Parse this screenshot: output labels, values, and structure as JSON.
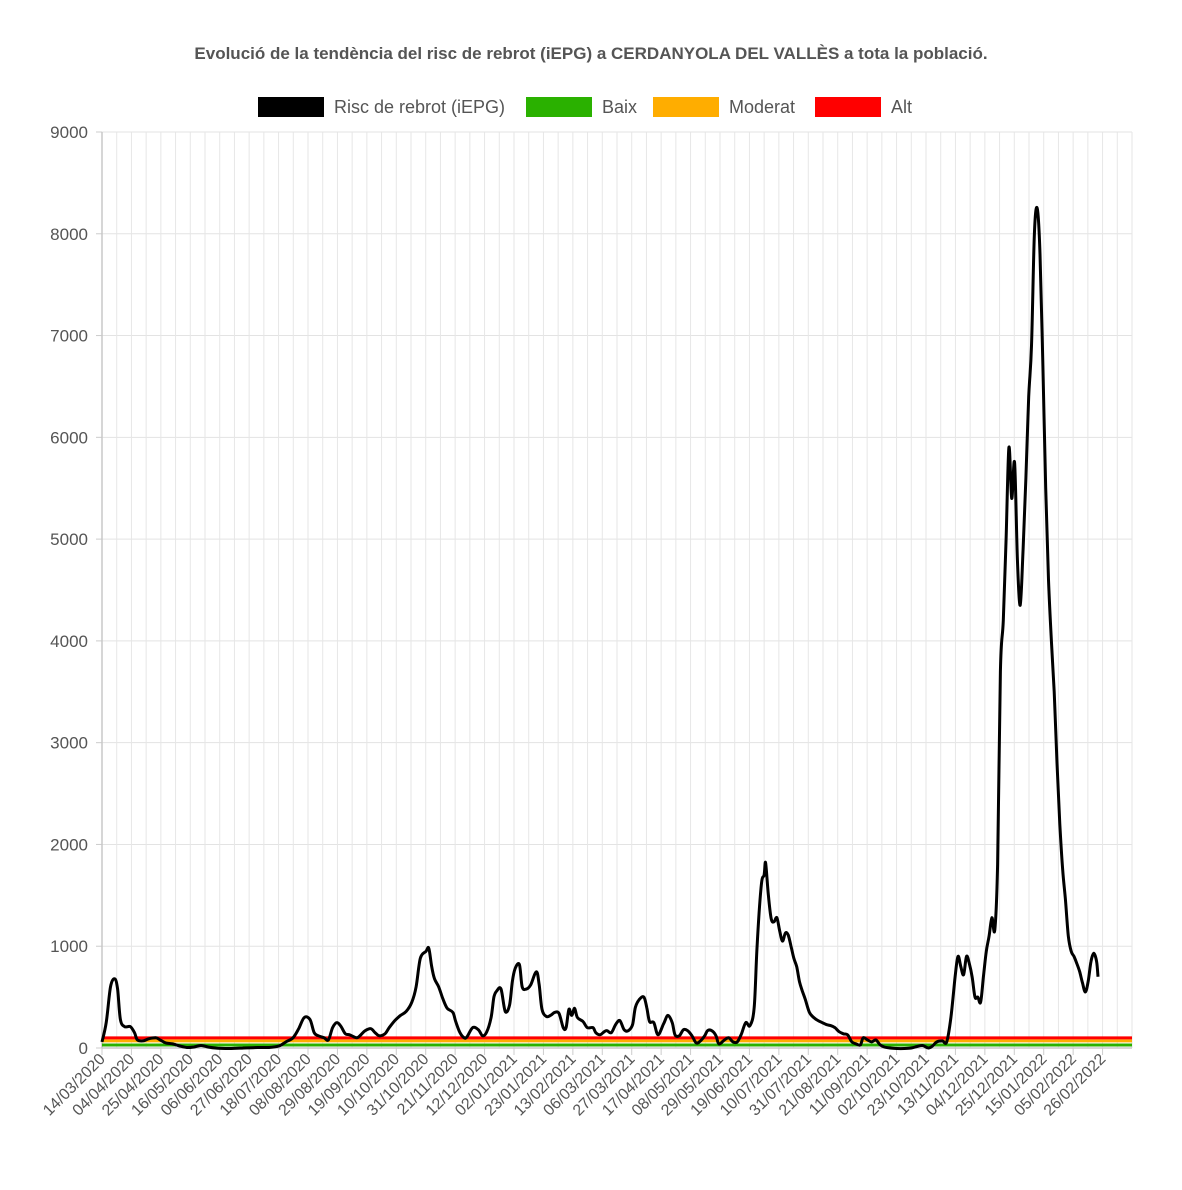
{
  "chart_data": {
    "type": "line",
    "title": "Evolució de la tendència del risc de rebrot (iEPG) a CERDANYOLA DEL VALLÈS a tota la població.",
    "legend_position": "top-center",
    "grid": true,
    "ylim": [
      0,
      9000
    ],
    "y_ticks": [
      "0",
      "1000",
      "2000",
      "3000",
      "4000",
      "5000",
      "6000",
      "7000",
      "8000",
      "9000"
    ],
    "x_tick_labels": [
      "14/03/2020",
      "04/04/2020",
      "25/04/2020",
      "16/05/2020",
      "06/06/2020",
      "27/06/2020",
      "18/07/2020",
      "08/08/2020",
      "29/08/2020",
      "19/09/2020",
      "10/10/2020",
      "31/10/2020",
      "21/11/2020",
      "12/12/2020",
      "02/01/2021",
      "23/01/2021",
      "13/02/2021",
      "06/03/2021",
      "27/03/2021",
      "17/04/2021",
      "08/05/2021",
      "29/05/2021",
      "19/06/2021",
      "10/07/2021",
      "31/07/2021",
      "21/08/2021",
      "11/09/2021",
      "02/10/2021",
      "23/10/2021",
      "13/11/2021",
      "04/12/2021",
      "25/12/2021",
      "15/01/2022",
      "05/02/2022",
      "26/02/2022"
    ],
    "x_day_range": [
      0,
      728
    ],
    "series": [
      {
        "name": "Risc de rebrot (iEPG)",
        "color": "#000000",
        "points": [
          [
            0,
            60
          ],
          [
            3,
            250
          ],
          [
            6,
            600
          ],
          [
            9,
            680
          ],
          [
            11,
            580
          ],
          [
            13,
            280
          ],
          [
            16,
            210
          ],
          [
            20,
            210
          ],
          [
            23,
            150
          ],
          [
            25,
            80
          ],
          [
            29,
            70
          ],
          [
            33,
            90
          ],
          [
            38,
            100
          ],
          [
            41,
            80
          ],
          [
            45,
            50
          ],
          [
            50,
            40
          ],
          [
            55,
            20
          ],
          [
            60,
            5
          ],
          [
            65,
            10
          ],
          [
            70,
            25
          ],
          [
            75,
            10
          ],
          [
            80,
            0
          ],
          [
            90,
            -5
          ],
          [
            100,
            0
          ],
          [
            110,
            5
          ],
          [
            118,
            5
          ],
          [
            125,
            20
          ],
          [
            130,
            60
          ],
          [
            135,
            100
          ],
          [
            139,
            190
          ],
          [
            143,
            300
          ],
          [
            147,
            280
          ],
          [
            150,
            150
          ],
          [
            153,
            120
          ],
          [
            157,
            100
          ],
          [
            160,
            80
          ],
          [
            163,
            200
          ],
          [
            166,
            250
          ],
          [
            169,
            210
          ],
          [
            172,
            140
          ],
          [
            175,
            130
          ],
          [
            180,
            100
          ],
          [
            183,
            130
          ],
          [
            186,
            170
          ],
          [
            190,
            190
          ],
          [
            193,
            150
          ],
          [
            196,
            120
          ],
          [
            200,
            140
          ],
          [
            203,
            200
          ],
          [
            207,
            270
          ],
          [
            211,
            320
          ],
          [
            215,
            360
          ],
          [
            219,
            450
          ],
          [
            222,
            600
          ],
          [
            225,
            880
          ],
          [
            229,
            950
          ],
          [
            231,
            980
          ],
          [
            233,
            800
          ],
          [
            235,
            680
          ],
          [
            238,
            600
          ],
          [
            241,
            480
          ],
          [
            244,
            390
          ],
          [
            248,
            350
          ],
          [
            250,
            260
          ],
          [
            253,
            150
          ],
          [
            256,
            100
          ],
          [
            258,
            110
          ],
          [
            262,
            200
          ],
          [
            266,
            180
          ],
          [
            269,
            120
          ],
          [
            272,
            160
          ],
          [
            275,
            300
          ],
          [
            277,
            500
          ],
          [
            279,
            560
          ],
          [
            282,
            580
          ],
          [
            285,
            360
          ],
          [
            288,
            420
          ],
          [
            290,
            650
          ],
          [
            292,
            780
          ],
          [
            295,
            820
          ],
          [
            297,
            600
          ],
          [
            300,
            580
          ],
          [
            303,
            620
          ],
          [
            307,
            750
          ],
          [
            309,
            620
          ],
          [
            311,
            380
          ],
          [
            314,
            310
          ],
          [
            317,
            320
          ],
          [
            320,
            350
          ],
          [
            323,
            340
          ],
          [
            326,
            200
          ],
          [
            328,
            200
          ],
          [
            330,
            380
          ],
          [
            332,
            320
          ],
          [
            334,
            390
          ],
          [
            336,
            300
          ],
          [
            340,
            260
          ],
          [
            343,
            200
          ],
          [
            347,
            200
          ],
          [
            349,
            150
          ],
          [
            352,
            130
          ],
          [
            355,
            160
          ],
          [
            357,
            170
          ],
          [
            360,
            150
          ],
          [
            363,
            230
          ],
          [
            366,
            270
          ],
          [
            369,
            180
          ],
          [
            372,
            170
          ],
          [
            375,
            230
          ],
          [
            377,
            400
          ],
          [
            380,
            480
          ],
          [
            383,
            500
          ],
          [
            385,
            400
          ],
          [
            387,
            260
          ],
          [
            390,
            250
          ],
          [
            393,
            130
          ],
          [
            397,
            240
          ],
          [
            400,
            320
          ],
          [
            403,
            250
          ],
          [
            405,
            130
          ],
          [
            408,
            120
          ],
          [
            411,
            180
          ],
          [
            414,
            170
          ],
          [
            417,
            120
          ],
          [
            420,
            50
          ],
          [
            423,
            70
          ],
          [
            426,
            120
          ],
          [
            428,
            170
          ],
          [
            431,
            170
          ],
          [
            434,
            120
          ],
          [
            436,
            40
          ],
          [
            440,
            80
          ],
          [
            443,
            100
          ],
          [
            446,
            60
          ],
          [
            449,
            60
          ],
          [
            452,
            140
          ],
          [
            455,
            250
          ],
          [
            458,
            220
          ],
          [
            461,
            400
          ],
          [
            463,
            1000
          ],
          [
            466,
            1600
          ],
          [
            468,
            1700
          ],
          [
            469,
            1820
          ],
          [
            471,
            1500
          ],
          [
            473,
            1270
          ],
          [
            475,
            1240
          ],
          [
            477,
            1280
          ],
          [
            479,
            1150
          ],
          [
            481,
            1050
          ],
          [
            483,
            1130
          ],
          [
            485,
            1110
          ],
          [
            487,
            1000
          ],
          [
            489,
            880
          ],
          [
            491,
            800
          ],
          [
            493,
            650
          ],
          [
            495,
            560
          ],
          [
            497,
            480
          ],
          [
            500,
            350
          ],
          [
            503,
            300
          ],
          [
            506,
            270
          ],
          [
            509,
            250
          ],
          [
            512,
            230
          ],
          [
            515,
            220
          ],
          [
            518,
            200
          ],
          [
            521,
            160
          ],
          [
            524,
            140
          ],
          [
            527,
            130
          ],
          [
            530,
            60
          ],
          [
            533,
            40
          ],
          [
            536,
            30
          ],
          [
            538,
            100
          ],
          [
            541,
            80
          ],
          [
            544,
            60
          ],
          [
            547,
            80
          ],
          [
            550,
            30
          ],
          [
            553,
            10
          ],
          [
            557,
            0
          ],
          [
            562,
            -5
          ],
          [
            567,
            -5
          ],
          [
            572,
            0
          ],
          [
            576,
            15
          ],
          [
            580,
            25
          ],
          [
            584,
            0
          ],
          [
            587,
            20
          ],
          [
            590,
            60
          ],
          [
            594,
            70
          ],
          [
            597,
            60
          ],
          [
            600,
            300
          ],
          [
            603,
            700
          ],
          [
            605,
            900
          ],
          [
            607,
            800
          ],
          [
            609,
            720
          ],
          [
            611,
            900
          ],
          [
            613,
            830
          ],
          [
            615,
            700
          ],
          [
            617,
            500
          ],
          [
            619,
            500
          ],
          [
            621,
            450
          ],
          [
            623,
            700
          ],
          [
            625,
            950
          ],
          [
            627,
            1100
          ],
          [
            629,
            1280
          ],
          [
            631,
            1160
          ],
          [
            633,
            1800
          ],
          [
            635,
            3700
          ],
          [
            637,
            4200
          ],
          [
            639,
            5000
          ],
          [
            641,
            5900
          ],
          [
            643,
            5400
          ],
          [
            645,
            5750
          ],
          [
            647,
            4800
          ],
          [
            649,
            4350
          ],
          [
            651,
            4900
          ],
          [
            653,
            5600
          ],
          [
            655,
            6400
          ],
          [
            657,
            6900
          ],
          [
            659,
            8000
          ],
          [
            661,
            8250
          ],
          [
            663,
            7800
          ],
          [
            665,
            6700
          ],
          [
            667,
            5500
          ],
          [
            669,
            4600
          ],
          [
            671,
            4000
          ],
          [
            673,
            3500
          ],
          [
            675,
            2800
          ],
          [
            677,
            2200
          ],
          [
            679,
            1750
          ],
          [
            681,
            1450
          ],
          [
            683,
            1100
          ],
          [
            685,
            950
          ],
          [
            687,
            900
          ],
          [
            689,
            830
          ],
          [
            691,
            750
          ],
          [
            693,
            640
          ],
          [
            695,
            550
          ],
          [
            697,
            650
          ],
          [
            699,
            850
          ],
          [
            701,
            930
          ],
          [
            703,
            850
          ],
          [
            704,
            700
          ]
        ]
      },
      {
        "name": "Baix",
        "color": "#2ab100",
        "value": 30
      },
      {
        "name": "Moderat",
        "color": "#ffad00",
        "value": 70
      },
      {
        "name": "Alt",
        "color": "#ff0000",
        "value": 100
      }
    ]
  }
}
